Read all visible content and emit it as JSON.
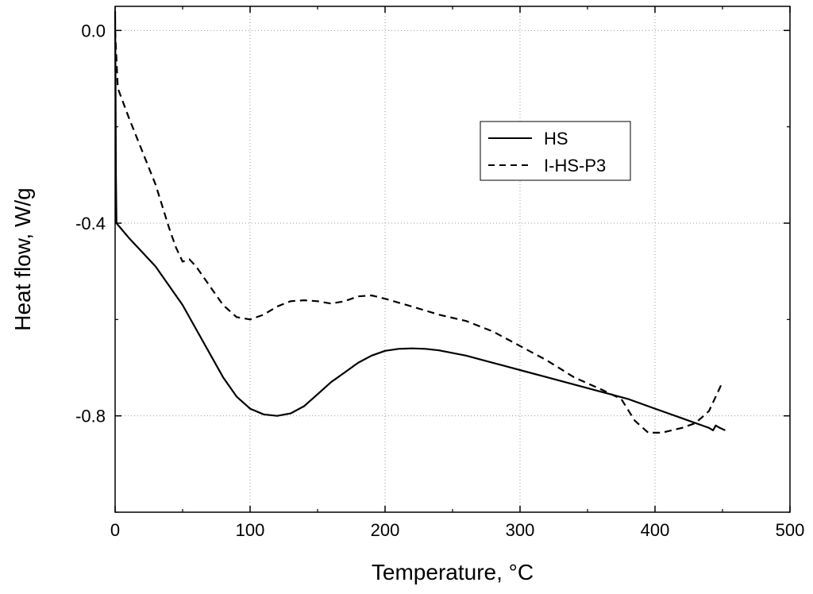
{
  "chart_data": {
    "type": "line",
    "title": "",
    "xlabel": "Temperature, °C",
    "ylabel": "Heat flow, W/g",
    "xlim": [
      0,
      500
    ],
    "ylim": [
      -1.0,
      0.05
    ],
    "xticks": [
      0,
      100,
      200,
      300,
      400,
      500
    ],
    "xtick_labels": [
      "0",
      "100",
      "200",
      "300",
      "400",
      "500"
    ],
    "yticks": [
      0.0,
      -0.4,
      -0.8
    ],
    "ytick_labels": [
      "0.0",
      "-0.4",
      "-0.8"
    ],
    "grid": "dotted",
    "legend_position": "top-right",
    "series": [
      {
        "name": "HS",
        "style": "solid",
        "color": "#000000",
        "points": [
          [
            0,
            0.04
          ],
          [
            0.3,
            -0.1
          ],
          [
            0.6,
            -0.3
          ],
          [
            1,
            -0.4
          ],
          [
            10,
            -0.43
          ],
          [
            20,
            -0.46
          ],
          [
            30,
            -0.49
          ],
          [
            40,
            -0.53
          ],
          [
            50,
            -0.57
          ],
          [
            60,
            -0.62
          ],
          [
            70,
            -0.67
          ],
          [
            80,
            -0.72
          ],
          [
            90,
            -0.76
          ],
          [
            100,
            -0.785
          ],
          [
            110,
            -0.797
          ],
          [
            120,
            -0.8
          ],
          [
            130,
            -0.795
          ],
          [
            140,
            -0.78
          ],
          [
            150,
            -0.755
          ],
          [
            160,
            -0.73
          ],
          [
            170,
            -0.71
          ],
          [
            180,
            -0.69
          ],
          [
            190,
            -0.675
          ],
          [
            200,
            -0.665
          ],
          [
            210,
            -0.661
          ],
          [
            220,
            -0.66
          ],
          [
            230,
            -0.661
          ],
          [
            240,
            -0.664
          ],
          [
            260,
            -0.675
          ],
          [
            280,
            -0.69
          ],
          [
            300,
            -0.705
          ],
          [
            320,
            -0.72
          ],
          [
            340,
            -0.735
          ],
          [
            360,
            -0.75
          ],
          [
            380,
            -0.765
          ],
          [
            400,
            -0.785
          ],
          [
            420,
            -0.805
          ],
          [
            440,
            -0.825
          ],
          [
            443,
            -0.83
          ],
          [
            445,
            -0.82
          ],
          [
            448,
            -0.825
          ],
          [
            452,
            -0.83
          ]
        ]
      },
      {
        "name": "I-HS-P3",
        "style": "dashed",
        "color": "#000000",
        "points": [
          [
            0,
            0.0
          ],
          [
            2,
            -0.12
          ],
          [
            10,
            -0.18
          ],
          [
            20,
            -0.25
          ],
          [
            30,
            -0.32
          ],
          [
            40,
            -0.41
          ],
          [
            45,
            -0.45
          ],
          [
            50,
            -0.48
          ],
          [
            55,
            -0.475
          ],
          [
            60,
            -0.49
          ],
          [
            70,
            -0.53
          ],
          [
            80,
            -0.57
          ],
          [
            90,
            -0.595
          ],
          [
            100,
            -0.6
          ],
          [
            110,
            -0.59
          ],
          [
            120,
            -0.573
          ],
          [
            130,
            -0.562
          ],
          [
            140,
            -0.56
          ],
          [
            150,
            -0.562
          ],
          [
            160,
            -0.567
          ],
          [
            170,
            -0.562
          ],
          [
            180,
            -0.552
          ],
          [
            190,
            -0.55
          ],
          [
            200,
            -0.557
          ],
          [
            220,
            -0.573
          ],
          [
            240,
            -0.59
          ],
          [
            260,
            -0.603
          ],
          [
            280,
            -0.625
          ],
          [
            300,
            -0.655
          ],
          [
            320,
            -0.685
          ],
          [
            340,
            -0.72
          ],
          [
            360,
            -0.745
          ],
          [
            375,
            -0.765
          ],
          [
            385,
            -0.81
          ],
          [
            395,
            -0.835
          ],
          [
            405,
            -0.835
          ],
          [
            420,
            -0.825
          ],
          [
            430,
            -0.815
          ],
          [
            440,
            -0.79
          ],
          [
            450,
            -0.73
          ]
        ]
      }
    ]
  }
}
